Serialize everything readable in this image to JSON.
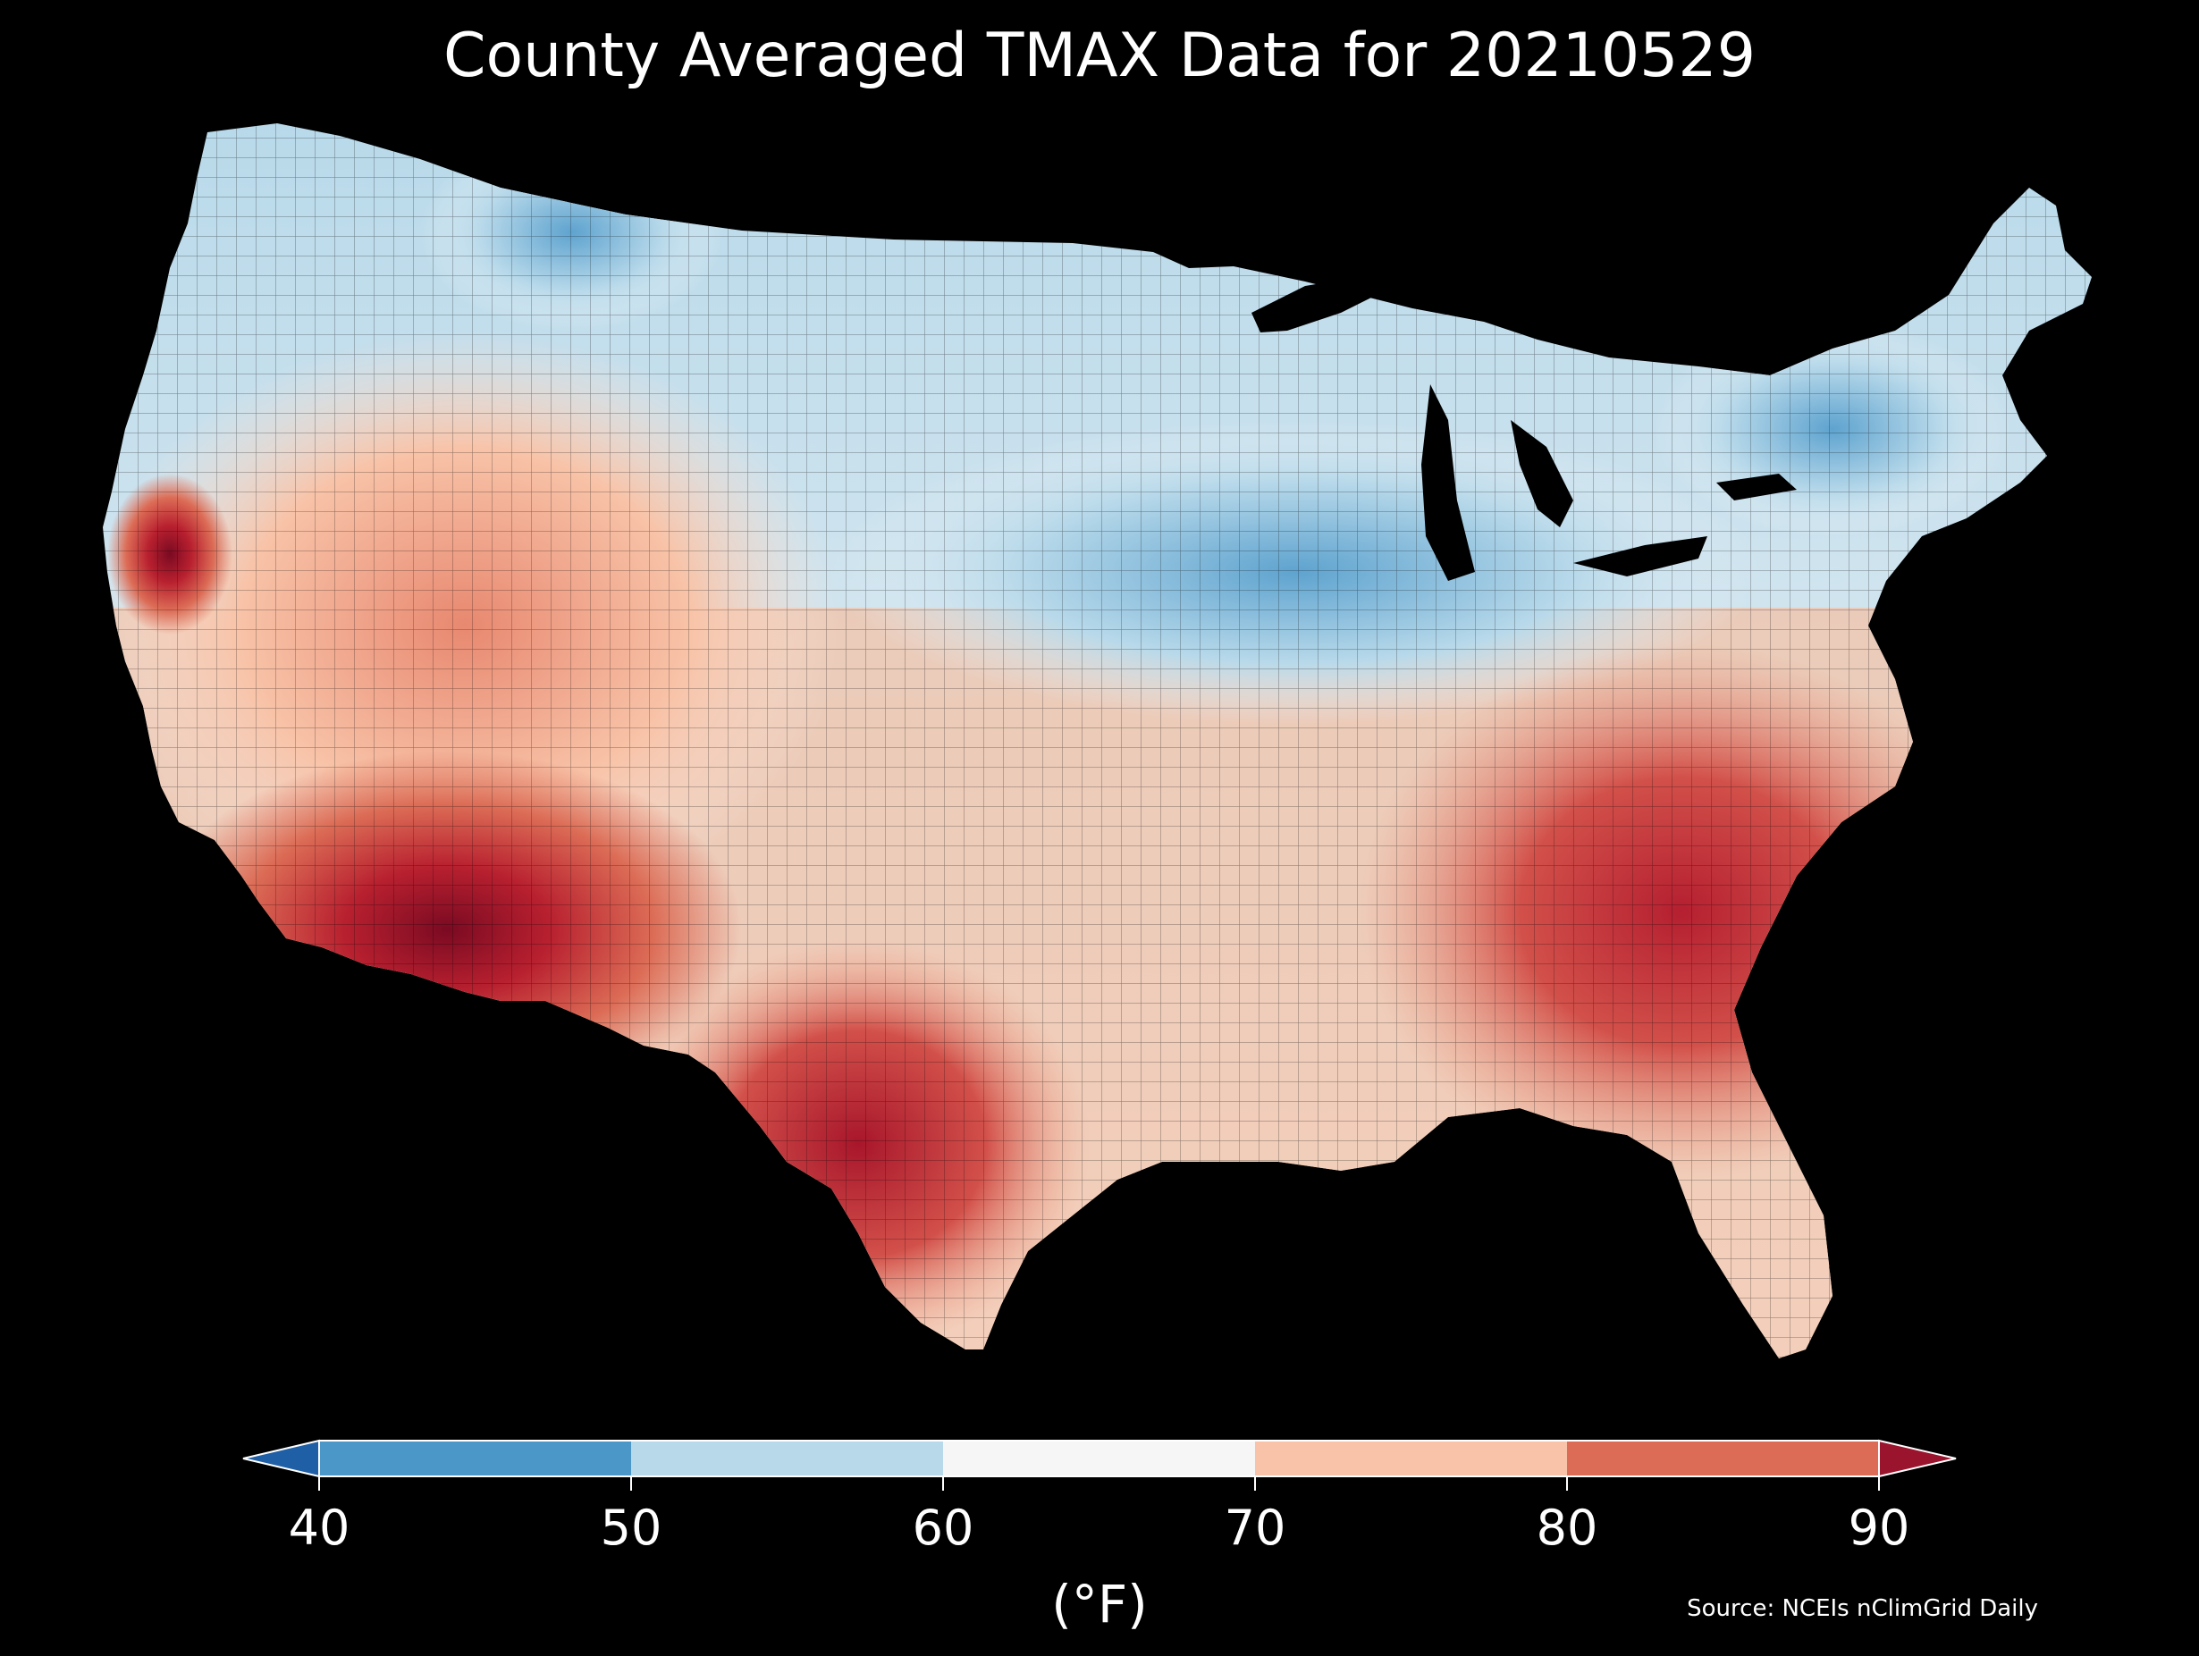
{
  "title": "County Averaged TMAX Data for 20210529",
  "colorbar": {
    "units_label": "(°F)",
    "ticks": [
      "40",
      "50",
      "60",
      "70",
      "80",
      "90"
    ],
    "under_color": "#1f5fa6",
    "over_color": "#99142c",
    "bins": [
      {
        "range": "40–50",
        "color": "#4b98c8"
      },
      {
        "range": "50–60",
        "color": "#b8d9ea"
      },
      {
        "range": "60–70",
        "color": "#f6f6f6"
      },
      {
        "range": "70–80",
        "color": "#f8c3a8"
      },
      {
        "range": "80–90",
        "color": "#dc6c56"
      }
    ]
  },
  "source": "Source: NCEIs nClimGrid Daily",
  "map": {
    "region": "Contiguous United States counties",
    "variable": "TMAX",
    "pattern": "Cool (50–60°F) across Great Lakes, Northeast and northern Plains; warm 80–90°F+ across Desert Southwest, Texas and Southeast coast"
  }
}
